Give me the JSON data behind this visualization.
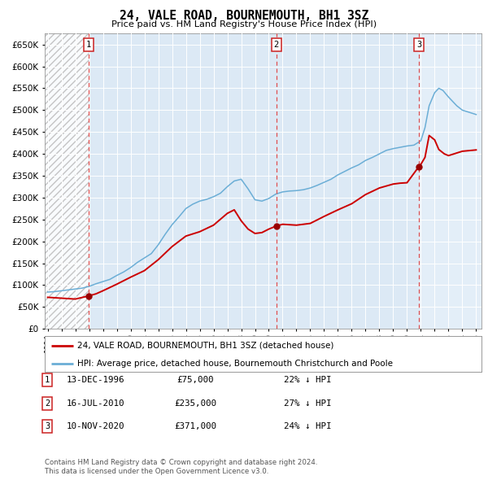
{
  "title": "24, VALE ROAD, BOURNEMOUTH, BH1 3SZ",
  "subtitle": "Price paid vs. HM Land Registry's House Price Index (HPI)",
  "background_color": "#dce9f5",
  "plot_bg_color": "#dce9f5",
  "hpi_color": "#6baed6",
  "price_color": "#cc0000",
  "marker_color": "#990000",
  "dashed_line_color": "#e05050",
  "ylim": [
    0,
    675000
  ],
  "yticks": [
    0,
    50000,
    100000,
    150000,
    200000,
    250000,
    300000,
    350000,
    400000,
    450000,
    500000,
    550000,
    600000,
    650000
  ],
  "transactions": [
    {
      "date_str": "13-DEC-1996",
      "date_num": 1996.95,
      "price": 75000,
      "label": "1"
    },
    {
      "date_str": "16-JUL-2010",
      "date_num": 2010.54,
      "price": 235000,
      "label": "2"
    },
    {
      "date_str": "10-NOV-2020",
      "date_num": 2020.86,
      "price": 371000,
      "label": "3"
    }
  ],
  "legend_line1": "24, VALE ROAD, BOURNEMOUTH, BH1 3SZ (detached house)",
  "legend_line2": "HPI: Average price, detached house, Bournemouth Christchurch and Poole",
  "footnote1": "Contains HM Land Registry data © Crown copyright and database right 2024.",
  "footnote2": "This data is licensed under the Open Government Licence v3.0.",
  "table_rows": [
    {
      "label": "1",
      "date": "13-DEC-1996",
      "price": "£75,000",
      "info": "22% ↓ HPI"
    },
    {
      "label": "2",
      "date": "16-JUL-2010",
      "price": "£235,000",
      "info": "27% ↓ HPI"
    },
    {
      "label": "3",
      "date": "10-NOV-2020",
      "price": "£371,000",
      "info": "24% ↓ HPI"
    }
  ],
  "hpi_years": [
    1994.0,
    1994.5,
    1995.0,
    1995.5,
    1996.0,
    1996.5,
    1997.0,
    1997.5,
    1998.0,
    1998.5,
    1999.0,
    1999.5,
    2000.0,
    2000.5,
    2001.0,
    2001.5,
    2002.0,
    2002.5,
    2003.0,
    2003.5,
    2004.0,
    2004.5,
    2005.0,
    2005.5,
    2006.0,
    2006.5,
    2007.0,
    2007.5,
    2008.0,
    2008.5,
    2009.0,
    2009.5,
    2010.0,
    2010.5,
    2011.0,
    2011.5,
    2012.0,
    2012.5,
    2013.0,
    2013.5,
    2014.0,
    2014.5,
    2015.0,
    2015.5,
    2016.0,
    2016.5,
    2017.0,
    2017.5,
    2018.0,
    2018.5,
    2019.0,
    2019.5,
    2020.0,
    2020.5,
    2021.0,
    2021.3,
    2021.6,
    2022.0,
    2022.3,
    2022.6,
    2023.0,
    2023.3,
    2023.6,
    2024.0,
    2024.5,
    2025.0
  ],
  "hpi_values": [
    84000,
    85000,
    87000,
    89000,
    91000,
    93000,
    97000,
    103000,
    108000,
    113000,
    122000,
    130000,
    140000,
    152000,
    162000,
    172000,
    192000,
    216000,
    238000,
    256000,
    275000,
    285000,
    292000,
    296000,
    302000,
    310000,
    325000,
    338000,
    342000,
    320000,
    295000,
    292000,
    298000,
    308000,
    313000,
    315000,
    316000,
    318000,
    322000,
    328000,
    335000,
    342000,
    352000,
    360000,
    368000,
    375000,
    385000,
    392000,
    400000,
    408000,
    412000,
    415000,
    418000,
    420000,
    430000,
    460000,
    510000,
    540000,
    550000,
    545000,
    530000,
    520000,
    510000,
    500000,
    495000,
    490000
  ],
  "price_years": [
    1994.0,
    1995.0,
    1996.0,
    1996.95,
    1997.5,
    1998.0,
    1999.0,
    2000.0,
    2001.0,
    2002.0,
    2003.0,
    2004.0,
    2005.0,
    2006.0,
    2007.0,
    2007.5,
    2008.0,
    2008.5,
    2009.0,
    2009.5,
    2010.0,
    2010.54,
    2011.0,
    2011.5,
    2012.0,
    2013.0,
    2014.0,
    2015.0,
    2016.0,
    2017.0,
    2018.0,
    2019.0,
    2019.5,
    2020.0,
    2020.86,
    2021.0,
    2021.3,
    2021.6,
    2022.0,
    2022.3,
    2022.7,
    2023.0,
    2023.5,
    2024.0,
    2025.0
  ],
  "price_values": [
    72000,
    70000,
    68000,
    75000,
    80000,
    87000,
    102000,
    118000,
    133000,
    158000,
    188000,
    212000,
    222000,
    237000,
    264000,
    272000,
    247000,
    228000,
    218000,
    220000,
    228000,
    235000,
    239000,
    238000,
    237000,
    241000,
    257000,
    272000,
    286000,
    307000,
    322000,
    331000,
    333000,
    334000,
    371000,
    376000,
    392000,
    442000,
    432000,
    410000,
    400000,
    396000,
    401000,
    406000,
    409000
  ]
}
